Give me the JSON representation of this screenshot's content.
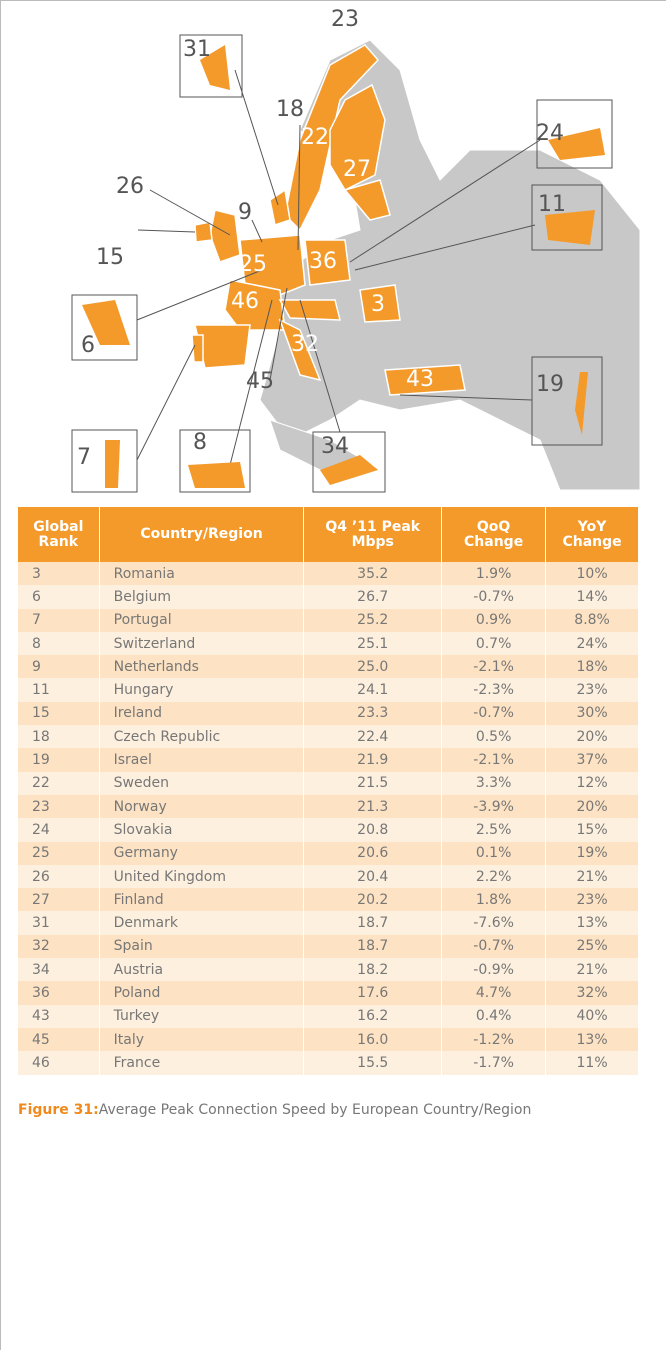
{
  "map": {
    "labels": [
      "23",
      "31",
      "18",
      "22",
      "27",
      "24",
      "26",
      "9",
      "11",
      "15",
      "25",
      "36",
      "3",
      "46",
      "6",
      "32",
      "43",
      "19",
      "45",
      "7",
      "8",
      "34"
    ]
  },
  "table": {
    "header": [
      "Global Rank",
      "Country/Region",
      "Q4 ’11 Peak Mbps",
      "QoQ Change",
      "YoY Change"
    ],
    "rows": [
      [
        "3",
        "Romania",
        "35.2",
        "1.9%",
        "10%"
      ],
      [
        "6",
        "Belgium",
        "26.7",
        "-0.7%",
        "14%"
      ],
      [
        "7",
        "Portugal",
        "25.2",
        "0.9%",
        "8.8%"
      ],
      [
        "8",
        "Switzerland",
        "25.1",
        "0.7%",
        "24%"
      ],
      [
        "9",
        "Netherlands",
        "25.0",
        "-2.1%",
        "18%"
      ],
      [
        "11",
        "Hungary",
        "24.1",
        "-2.3%",
        "23%"
      ],
      [
        "15",
        "Ireland",
        "23.3",
        "-0.7%",
        "30%"
      ],
      [
        "18",
        "Czech Republic",
        "22.4",
        "0.5%",
        "20%"
      ],
      [
        "19",
        "Israel",
        "21.9",
        "-2.1%",
        "37%"
      ],
      [
        "22",
        "Sweden",
        "21.5",
        "3.3%",
        "12%"
      ],
      [
        "23",
        "Norway",
        "21.3",
        "-3.9%",
        "20%"
      ],
      [
        "24",
        "Slovakia",
        "20.8",
        "2.5%",
        "15%"
      ],
      [
        "25",
        "Germany",
        "20.6",
        "0.1%",
        "19%"
      ],
      [
        "26",
        "United Kingdom",
        "20.4",
        "2.2%",
        "21%"
      ],
      [
        "27",
        "Finland",
        "20.2",
        "1.8%",
        "23%"
      ],
      [
        "31",
        "Denmark",
        "18.7",
        "-7.6%",
        "13%"
      ],
      [
        "32",
        "Spain",
        "18.7",
        "-0.7%",
        "25%"
      ],
      [
        "34",
        "Austria",
        "18.2",
        "-0.9%",
        "21%"
      ],
      [
        "36",
        "Poland",
        "17.6",
        "4.7%",
        "32%"
      ],
      [
        "43",
        "Turkey",
        "16.2",
        "0.4%",
        "40%"
      ],
      [
        "45",
        "Italy",
        "16.0",
        "-1.2%",
        "13%"
      ],
      [
        "46",
        "France",
        "15.5",
        "-1.7%",
        "11%"
      ]
    ]
  },
  "caption": {
    "label": "Figure 31:",
    "text": "Average Peak Connection Speed by European Country/Region"
  }
}
